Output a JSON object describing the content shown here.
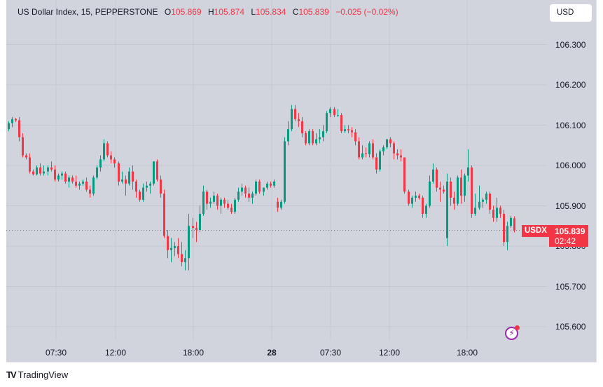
{
  "legend": {
    "symbol": "US Dollar Index, 15, PEPPERSTONE",
    "open_label": "O",
    "open": "105.869",
    "high_label": "H",
    "high": "105.874",
    "low_label": "L",
    "low": "105.834",
    "close_label": "C",
    "close": "105.839",
    "change": "−0.025 (−0.02%)"
  },
  "currency_button": "USD",
  "last_price": {
    "symbol_tag": "USDX",
    "value": "105.839",
    "countdown": "02:42"
  },
  "footer": {
    "brand": "TradingView",
    "logo": "TV"
  },
  "colors": {
    "background": "#d1d4dc",
    "up": "#089981",
    "down": "#f23645",
    "grid": "#c4c7cf",
    "alert": "#9c27b0"
  },
  "chart_data": {
    "type": "candlestick",
    "title": "US Dollar Index, 15, PEPPERSTONE",
    "interval": "15",
    "yticks": [
      "106.300",
      "106.200",
      "106.100",
      "106.000",
      "105.900",
      "105.800",
      "105.700",
      "105.600"
    ],
    "xticks": [
      "07:30",
      "12:00",
      "18:00",
      "28",
      "07:30",
      "12:00",
      "18:00"
    ],
    "ylim": [
      105.55,
      106.35
    ],
    "candles": [
      [
        106.09,
        106.11,
        106.085,
        106.105
      ],
      [
        106.105,
        106.12,
        106.095,
        106.115
      ],
      [
        106.115,
        106.118,
        106.108,
        106.112
      ],
      [
        106.112,
        106.12,
        106.06,
        106.07
      ],
      [
        106.07,
        106.08,
        106.02,
        106.025
      ],
      [
        106.025,
        106.03,
        106.015,
        106.02
      ],
      [
        106.02,
        106.03,
        105.98,
        105.985
      ],
      [
        105.985,
        105.99,
        105.975,
        105.978
      ],
      [
        105.978,
        106.0,
        105.975,
        105.995
      ],
      [
        105.995,
        106.005,
        105.975,
        105.98
      ],
      [
        105.98,
        106.0,
        105.975,
        105.985
      ],
      [
        105.985,
        106.0,
        105.975,
        105.995
      ],
      [
        105.995,
        106.01,
        105.985,
        105.99
      ],
      [
        105.99,
        106.0,
        105.96,
        105.965
      ],
      [
        105.965,
        105.98,
        105.96,
        105.975
      ],
      [
        105.975,
        105.985,
        105.965,
        105.98
      ],
      [
        105.98,
        105.985,
        105.955,
        105.96
      ],
      [
        105.96,
        105.975,
        105.945,
        105.97
      ],
      [
        105.97,
        105.975,
        105.955,
        105.96
      ],
      [
        105.96,
        105.975,
        105.945,
        105.95
      ],
      [
        105.95,
        105.96,
        105.94,
        105.955
      ],
      [
        105.955,
        105.965,
        105.95,
        105.96
      ],
      [
        105.96,
        105.97,
        105.935,
        105.94
      ],
      [
        105.94,
        105.95,
        105.92,
        105.93
      ],
      [
        105.93,
        105.975,
        105.925,
        105.97
      ],
      [
        105.97,
        106.0,
        105.965,
        105.995
      ],
      [
        105.995,
        106.025,
        105.985,
        106.015
      ],
      [
        106.015,
        106.065,
        106.01,
        106.055
      ],
      [
        106.055,
        106.06,
        106.02,
        106.025
      ],
      [
        106.025,
        106.035,
        106.005,
        106.015
      ],
      [
        106.015,
        106.02,
        105.995,
        106.005
      ],
      [
        106.005,
        106.01,
        105.95,
        105.96
      ],
      [
        105.96,
        105.985,
        105.955,
        105.965
      ],
      [
        105.965,
        105.975,
        105.925,
        105.955
      ],
      [
        105.955,
        105.995,
        105.95,
        105.985
      ],
      [
        105.985,
        106.0,
        105.94,
        105.96
      ],
      [
        105.96,
        105.965,
        105.92,
        105.935
      ],
      [
        105.935,
        105.94,
        105.91,
        105.915
      ],
      [
        105.915,
        105.955,
        105.91,
        105.945
      ],
      [
        105.945,
        105.96,
        105.935,
        105.95
      ],
      [
        105.95,
        105.96,
        105.93,
        105.955
      ],
      [
        105.955,
        106.01,
        105.95,
        106.01
      ],
      [
        106.01,
        106.015,
        105.96,
        105.965
      ],
      [
        105.965,
        105.975,
        105.92,
        105.93
      ],
      [
        105.93,
        105.94,
        105.82,
        105.825
      ],
      [
        105.825,
        105.84,
        105.77,
        105.79
      ],
      [
        105.79,
        105.82,
        105.76,
        105.795
      ],
      [
        105.795,
        105.81,
        105.775,
        105.8
      ],
      [
        105.8,
        105.82,
        105.77,
        105.78
      ],
      [
        105.78,
        105.81,
        105.75,
        105.76
      ],
      [
        105.76,
        105.79,
        105.74,
        105.77
      ],
      [
        105.77,
        105.88,
        105.74,
        105.85
      ],
      [
        105.85,
        105.87,
        105.82,
        105.845
      ],
      [
        105.845,
        105.86,
        105.81,
        105.84
      ],
      [
        105.84,
        105.9,
        105.835,
        105.88
      ],
      [
        105.88,
        105.95,
        105.875,
        105.935
      ],
      [
        105.935,
        105.94,
        105.89,
        105.905
      ],
      [
        105.905,
        105.92,
        105.895,
        105.91
      ],
      [
        105.91,
        105.935,
        105.905,
        105.925
      ],
      [
        105.925,
        105.93,
        105.89,
        105.9
      ],
      [
        105.9,
        105.92,
        105.88,
        105.915
      ],
      [
        105.915,
        105.92,
        105.895,
        105.905
      ],
      [
        105.905,
        105.915,
        105.89,
        105.895
      ],
      [
        105.895,
        105.905,
        105.88,
        105.885
      ],
      [
        105.885,
        105.92,
        105.88,
        105.915
      ],
      [
        105.915,
        105.945,
        105.91,
        105.935
      ],
      [
        105.935,
        105.955,
        105.925,
        105.945
      ],
      [
        105.945,
        105.95,
        105.92,
        105.93
      ],
      [
        105.93,
        105.945,
        105.91,
        105.92
      ],
      [
        105.92,
        105.935,
        105.905,
        105.93
      ],
      [
        105.93,
        105.965,
        105.925,
        105.96
      ],
      [
        105.96,
        105.965,
        105.93,
        105.935
      ],
      [
        105.935,
        105.945,
        105.925,
        105.945
      ],
      [
        105.945,
        105.96,
        105.94,
        105.955
      ],
      [
        105.955,
        105.96,
        105.945,
        105.95
      ],
      [
        105.95,
        105.965,
        105.945,
        105.96
      ],
      [
        105.91,
        105.92,
        105.885,
        105.895
      ],
      [
        105.895,
        105.915,
        105.89,
        105.91
      ],
      [
        105.91,
        106.07,
        105.905,
        106.06
      ],
      [
        106.06,
        106.11,
        106.05,
        106.09
      ],
      [
        106.09,
        106.15,
        106.085,
        106.14
      ],
      [
        106.14,
        106.15,
        106.11,
        106.115
      ],
      [
        106.115,
        106.13,
        106.095,
        106.11
      ],
      [
        106.11,
        106.12,
        106.07,
        106.08
      ],
      [
        106.08,
        106.085,
        106.05,
        106.055
      ],
      [
        106.055,
        106.09,
        106.05,
        106.085
      ],
      [
        106.085,
        106.09,
        106.05,
        106.055
      ],
      [
        106.055,
        106.08,
        106.05,
        106.065
      ],
      [
        106.065,
        106.09,
        106.055,
        106.07
      ],
      [
        106.07,
        106.1,
        106.06,
        106.085
      ],
      [
        106.085,
        106.135,
        106.08,
        106.13
      ],
      [
        106.13,
        106.145,
        106.12,
        106.14
      ],
      [
        106.14,
        106.145,
        106.12,
        106.125
      ],
      [
        106.125,
        106.14,
        106.12,
        106.125
      ],
      [
        106.125,
        106.13,
        106.08,
        106.085
      ],
      [
        106.085,
        106.1,
        106.08,
        106.09
      ],
      [
        106.09,
        106.1,
        106.08,
        106.087
      ],
      [
        106.087,
        106.095,
        106.07,
        106.082
      ],
      [
        106.082,
        106.09,
        106.05,
        106.06
      ],
      [
        106.06,
        106.07,
        106.015,
        106.02
      ],
      [
        106.02,
        106.05,
        106.015,
        106.03
      ],
      [
        106.03,
        106.045,
        106.02,
        106.028
      ],
      [
        106.028,
        106.06,
        106.02,
        106.055
      ],
      [
        106.055,
        106.065,
        106.015,
        106.02
      ],
      [
        106.02,
        106.03,
        105.98,
        105.99
      ],
      [
        105.99,
        106.04,
        105.985,
        106.035
      ],
      [
        106.035,
        106.05,
        106.025,
        106.045
      ],
      [
        106.045,
        106.065,
        106.04,
        106.065
      ],
      [
        106.065,
        106.07,
        106.045,
        106.055
      ],
      [
        106.055,
        106.06,
        106.015,
        106.03
      ],
      [
        106.03,
        106.04,
        106.015,
        106.025
      ],
      [
        106.025,
        106.04,
        106.01,
        106.02
      ],
      [
        106.02,
        106.02,
        105.93,
        105.935
      ],
      [
        105.935,
        105.94,
        105.9,
        105.905
      ],
      [
        105.905,
        105.925,
        105.895,
        105.92
      ],
      [
        105.92,
        105.935,
        105.91,
        105.925
      ],
      [
        105.925,
        105.93,
        105.915,
        105.92
      ],
      [
        105.92,
        105.925,
        105.87,
        105.88
      ],
      [
        105.88,
        105.905,
        105.87,
        105.9
      ],
      [
        105.9,
        105.975,
        105.895,
        105.96
      ],
      [
        105.96,
        106.005,
        105.955,
        105.99
      ],
      [
        105.99,
        105.995,
        105.935,
        105.945
      ],
      [
        105.945,
        105.96,
        105.91,
        105.94
      ],
      [
        105.94,
        105.95,
        105.93,
        105.935
      ],
      [
        105.82,
        105.98,
        105.8,
        105.96
      ],
      [
        105.96,
        105.97,
        105.9,
        105.92
      ],
      [
        105.92,
        105.935,
        105.89,
        105.905
      ],
      [
        105.905,
        105.975,
        105.9,
        105.97
      ],
      [
        105.97,
        105.99,
        105.905,
        105.925
      ],
      [
        105.925,
        105.98,
        105.91,
        105.975
      ],
      [
        105.975,
        106.04,
        105.96,
        105.995
      ],
      [
        105.995,
        106.0,
        105.87,
        105.88
      ],
      [
        105.88,
        105.93,
        105.875,
        105.895
      ],
      [
        105.895,
        105.95,
        105.89,
        105.91
      ],
      [
        105.91,
        105.92,
        105.895,
        105.915
      ],
      [
        105.915,
        105.935,
        105.905,
        105.93
      ],
      [
        105.93,
        105.935,
        105.88,
        105.89
      ],
      [
        105.89,
        105.9,
        105.86,
        105.87
      ],
      [
        105.87,
        105.92,
        105.86,
        105.895
      ],
      [
        105.895,
        105.9,
        105.87,
        105.88
      ],
      [
        105.88,
        105.89,
        105.8,
        105.81
      ],
      [
        105.81,
        105.86,
        105.79,
        105.85
      ],
      [
        105.85,
        105.875,
        105.845,
        105.87
      ],
      [
        105.869,
        105.874,
        105.834,
        105.839
      ]
    ]
  }
}
